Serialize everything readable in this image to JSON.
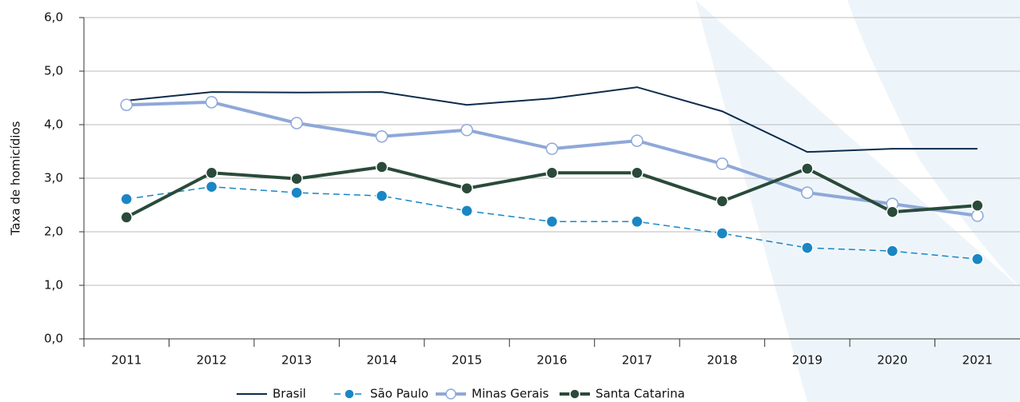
{
  "chart_data": {
    "type": "line",
    "y_label": "Taxa de homicídios",
    "categories": [
      "2011",
      "2012",
      "2013",
      "2014",
      "2015",
      "2016",
      "2017",
      "2018",
      "2019",
      "2020",
      "2021"
    ],
    "series": [
      {
        "name": "Brasil",
        "color": "#0d2c4d",
        "width": 2,
        "dashed": false,
        "marker": "none",
        "values": [
          4.45,
          4.61,
          4.6,
          4.61,
          4.37,
          4.49,
          4.7,
          4.25,
          3.49,
          3.55,
          3.55
        ]
      },
      {
        "name": "São Paulo",
        "color": "#1a86c4",
        "width": 1.5,
        "dashed": true,
        "marker": "filled",
        "values": [
          2.61,
          2.84,
          2.73,
          2.67,
          2.39,
          2.19,
          2.19,
          1.97,
          1.7,
          1.64,
          1.49
        ]
      },
      {
        "name": "Minas Gerais",
        "color": "#8ea8d8",
        "width": 4,
        "dashed": false,
        "marker": "hollow",
        "values": [
          4.37,
          4.42,
          4.03,
          3.78,
          3.9,
          3.55,
          3.7,
          3.27,
          2.73,
          2.52,
          2.3
        ]
      },
      {
        "name": "Santa Catarina",
        "color": "#2a4a3a",
        "width": 4,
        "dashed": false,
        "marker": "filled",
        "values": [
          2.27,
          3.1,
          2.99,
          3.21,
          2.81,
          3.1,
          3.1,
          2.57,
          3.18,
          2.37,
          2.49
        ]
      }
    ],
    "ylim": [
      0,
      6
    ],
    "yticks": [
      {
        "value": 0,
        "label": "0,0"
      },
      {
        "value": 1,
        "label": "1,0"
      },
      {
        "value": 2,
        "label": "2,0"
      },
      {
        "value": 3,
        "label": "3,0"
      },
      {
        "value": 4,
        "label": "4,0"
      },
      {
        "value": 5,
        "label": "5,0"
      },
      {
        "value": 6,
        "label": "6,0"
      }
    ],
    "grid": true,
    "legend": "bottom"
  }
}
